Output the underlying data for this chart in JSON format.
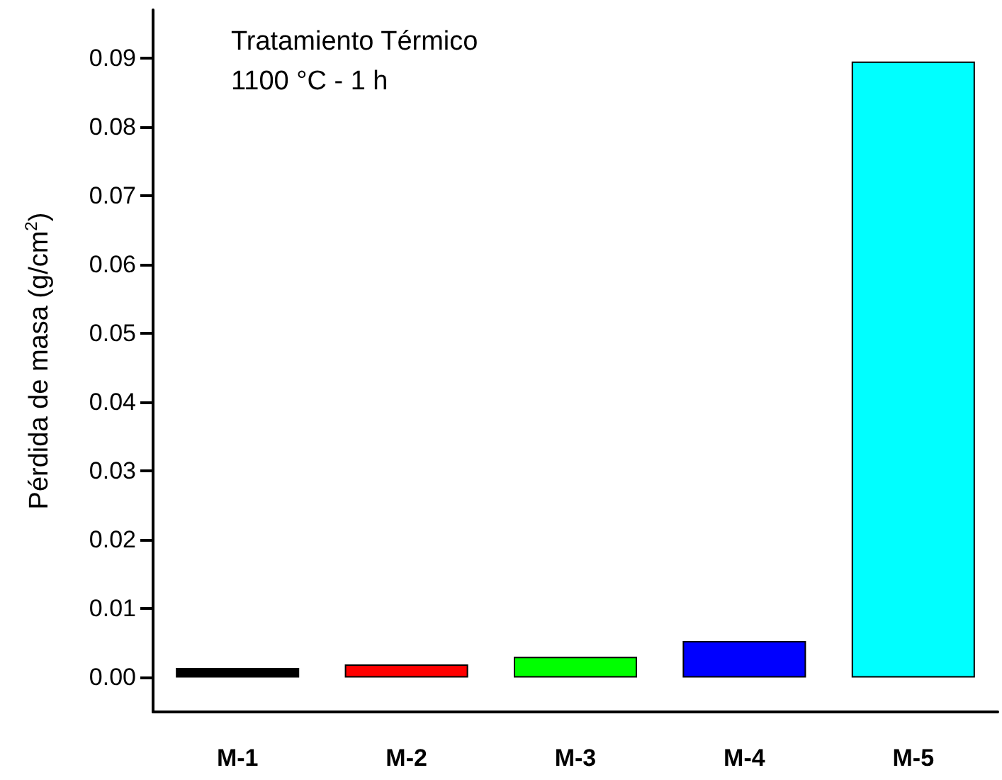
{
  "chart_data": {
    "type": "bar",
    "ylabel": "Pérdida de masa (g/cm$^{2}$)",
    "annotations": [
      "Tratamiento Térmico",
      "1100 °C - 1 h"
    ],
    "categories": [
      "M-1",
      "M-2",
      "M-3",
      "M-4",
      "M-5"
    ],
    "values": [
      0.0014,
      0.0019,
      0.003,
      0.0053,
      0.0895
    ],
    "colors": [
      "#000000",
      "#ff0000",
      "#00ff00",
      "#0000ff",
      "#00ffff"
    ],
    "ylim": [
      -0.005,
      0.097
    ],
    "yticks": [
      {
        "value": 0,
        "label": "0.00"
      },
      0.01,
      0.02,
      0.03,
      0.04,
      0.05,
      0.06,
      0.07,
      0.08,
      0.09
    ],
    "grid": false
  }
}
